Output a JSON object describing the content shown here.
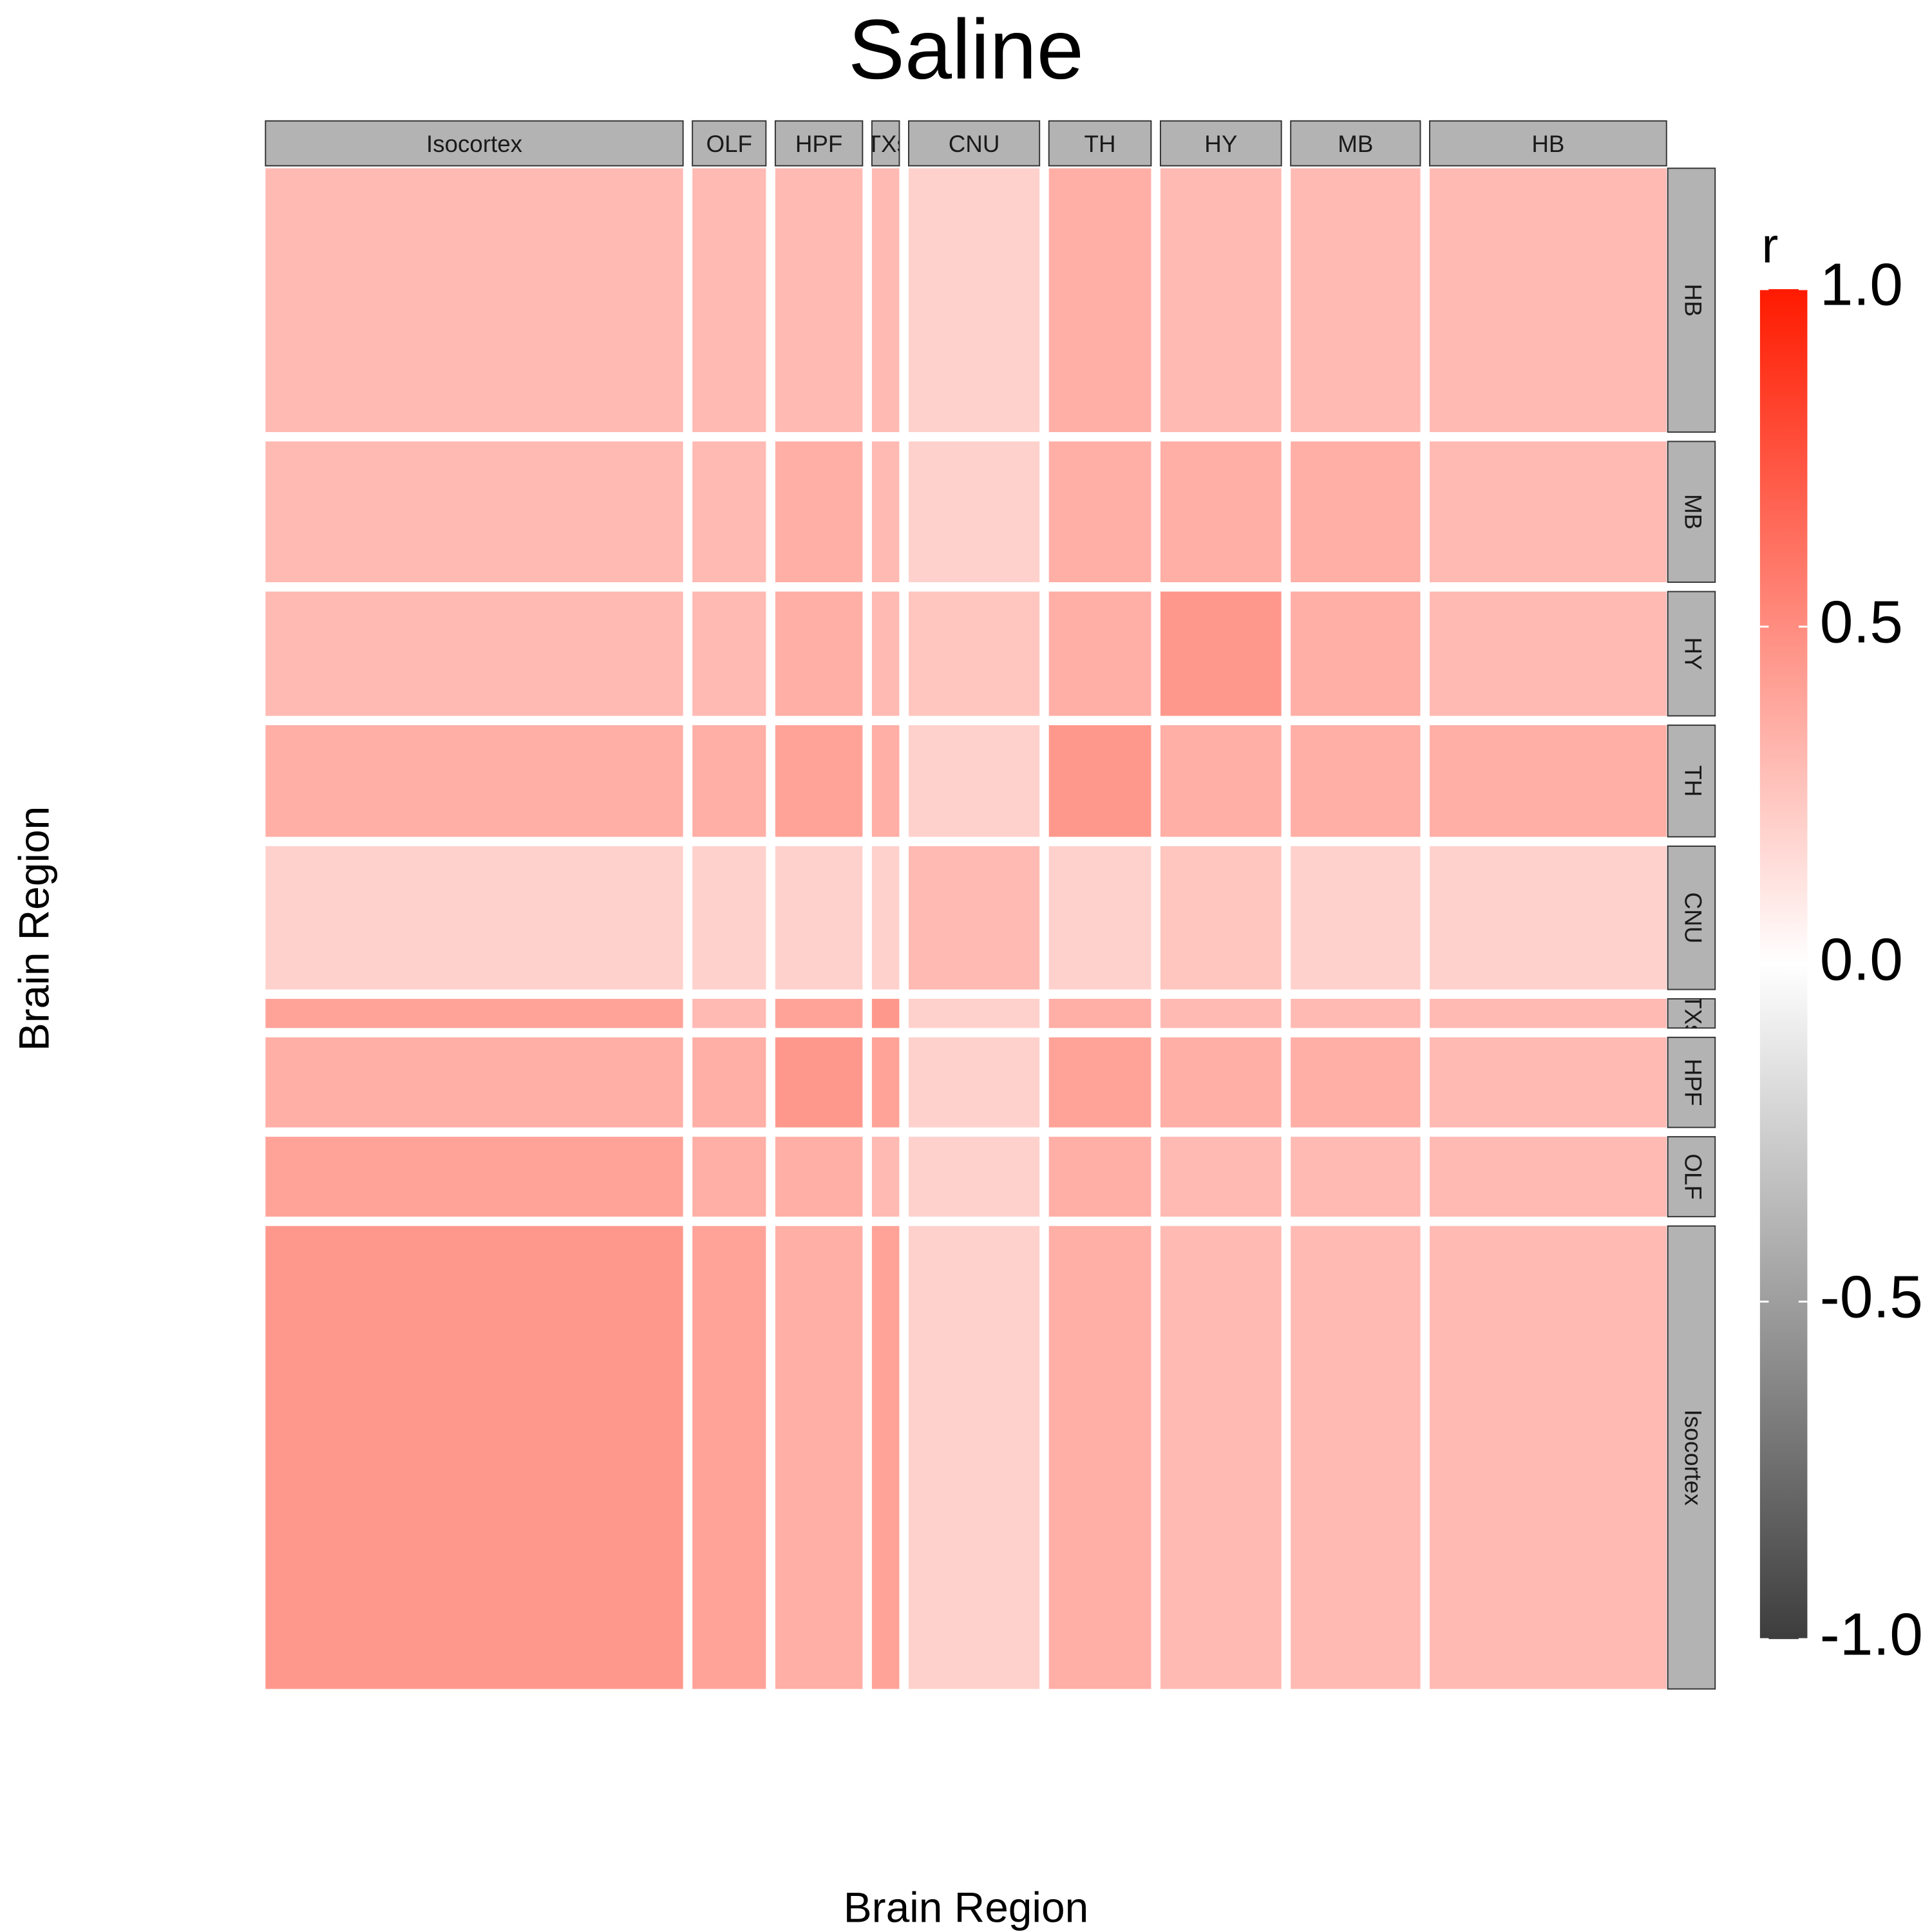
{
  "chart_data": {
    "type": "heatmap",
    "title": "Saline",
    "x_label": "Brain Region",
    "y_label": "Brain Region",
    "categories": [
      "Isocortex",
      "OLF",
      "HPF",
      "CTXsp",
      "CNU",
      "TH",
      "HY",
      "MB",
      "HB"
    ],
    "values": [
      [
        0.45,
        0.4,
        0.35,
        0.4,
        0.2,
        0.35,
        0.3,
        0.3,
        0.3
      ],
      [
        0.4,
        0.35,
        0.35,
        0.3,
        0.2,
        0.35,
        0.3,
        0.3,
        0.3
      ],
      [
        0.35,
        0.35,
        0.45,
        0.4,
        0.2,
        0.4,
        0.35,
        0.35,
        0.3
      ],
      [
        0.4,
        0.3,
        0.4,
        0.45,
        0.2,
        0.35,
        0.3,
        0.3,
        0.3
      ],
      [
        0.2,
        0.2,
        0.2,
        0.2,
        0.3,
        0.2,
        0.25,
        0.2,
        0.2
      ],
      [
        0.35,
        0.35,
        0.4,
        0.35,
        0.2,
        0.45,
        0.35,
        0.35,
        0.35
      ],
      [
        0.3,
        0.3,
        0.35,
        0.3,
        0.25,
        0.35,
        0.45,
        0.35,
        0.3
      ],
      [
        0.3,
        0.3,
        0.35,
        0.3,
        0.2,
        0.35,
        0.35,
        0.35,
        0.3
      ],
      [
        0.3,
        0.3,
        0.3,
        0.3,
        0.2,
        0.35,
        0.3,
        0.3,
        0.3
      ]
    ],
    "colorbar_title": "r",
    "clim": [
      -1,
      1
    ],
    "scale_colors": [
      "#3d3d3d",
      "#ffffff",
      "#ff1a00"
    ],
    "cticks": [
      {
        "value": -1,
        "label": "-1.0"
      },
      {
        "value": -0.5,
        "label": "-0.5"
      },
      {
        "value": 0,
        "label": "0.0"
      },
      {
        "value": 0.5,
        "label": "0.5"
      },
      {
        "value": 1,
        "label": "1.0"
      }
    ]
  }
}
